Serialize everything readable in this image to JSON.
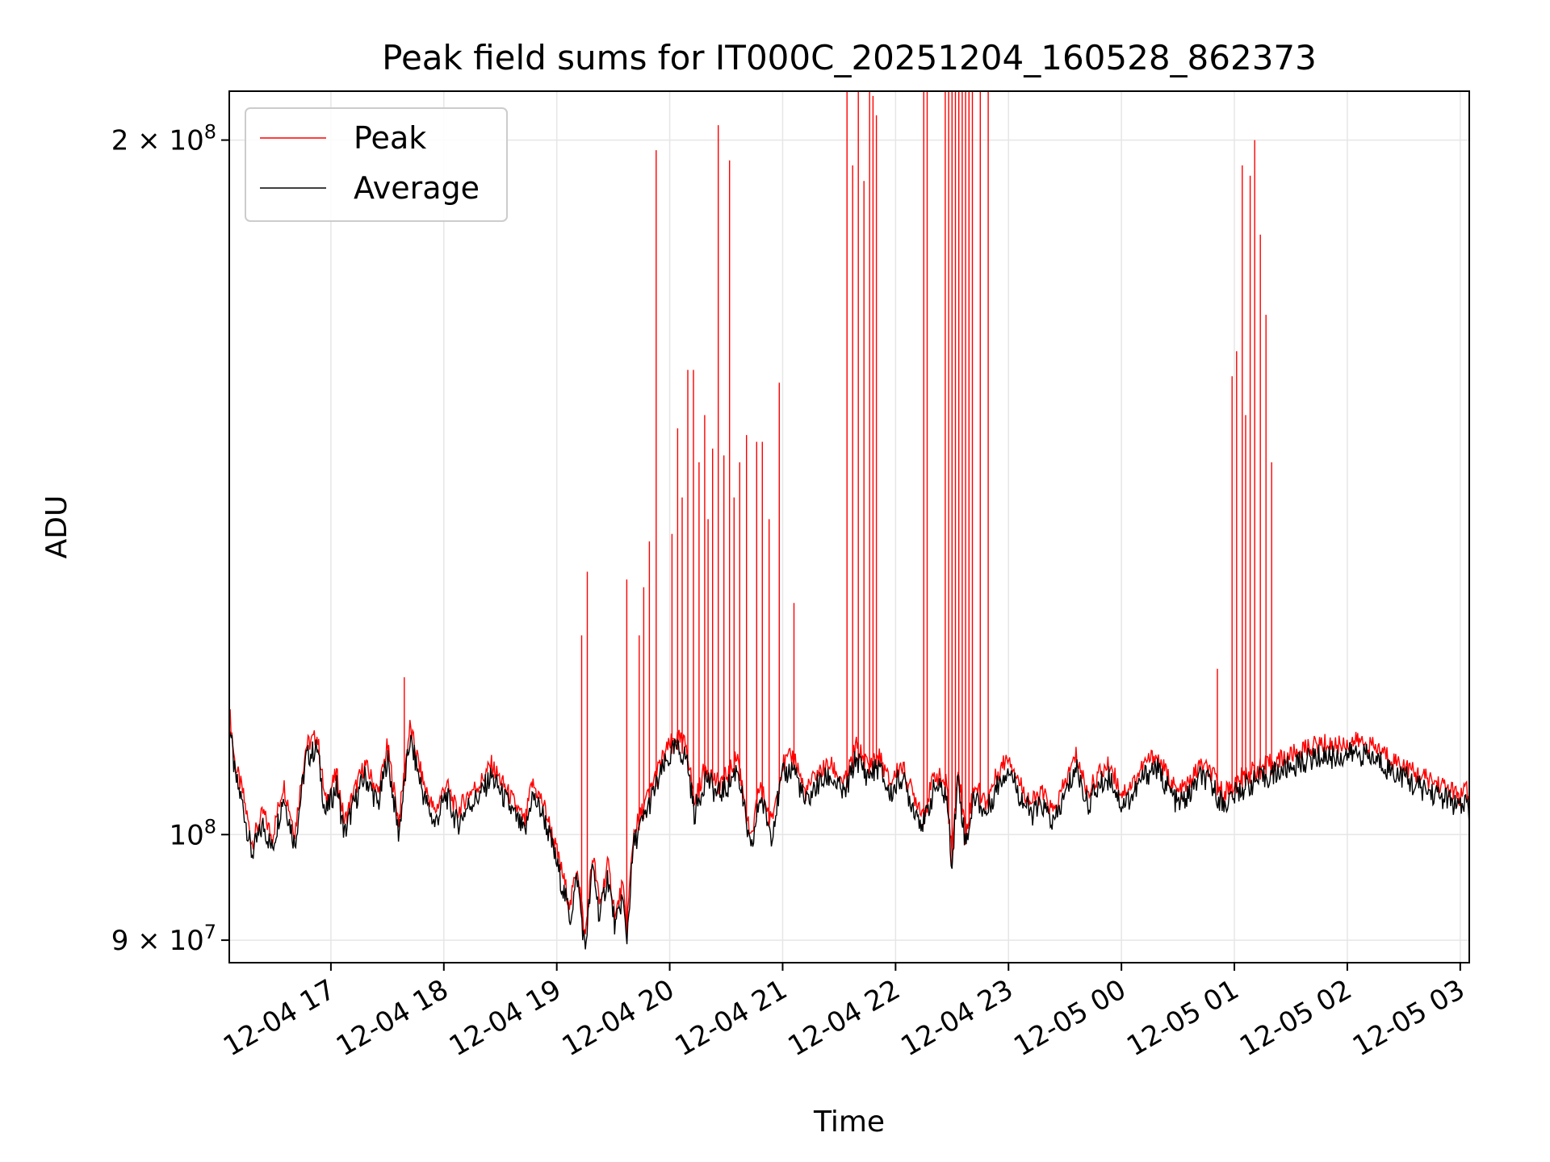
{
  "chart_data": {
    "type": "line",
    "title": "Peak field sums for IT000C_20251204_160528_862373",
    "xlabel": "Time",
    "ylabel": "ADU",
    "yscale": "log",
    "ylim": [
      88000000,
      210000000
    ],
    "xlim_hours": [
      16.1,
      27.08
    ],
    "grid": true,
    "legend_position": "upper-left",
    "x_ticks": [
      {
        "hour": 17,
        "label": "12-04 17"
      },
      {
        "hour": 18,
        "label": "12-04 18"
      },
      {
        "hour": 19,
        "label": "12-04 19"
      },
      {
        "hour": 20,
        "label": "12-04 20"
      },
      {
        "hour": 21,
        "label": "12-04 21"
      },
      {
        "hour": 22,
        "label": "12-04 22"
      },
      {
        "hour": 23,
        "label": "12-04 23"
      },
      {
        "hour": 24,
        "label": "12-05 00"
      },
      {
        "hour": 25,
        "label": "12-05 01"
      },
      {
        "hour": 26,
        "label": "12-05 02"
      },
      {
        "hour": 27,
        "label": "12-05 03"
      }
    ],
    "y_ticks": [
      {
        "value": 90000000,
        "mantissa": "9",
        "exponent": "7"
      },
      {
        "value": 100000000,
        "mantissa": "",
        "exponent": "8"
      },
      {
        "value": 200000000,
        "mantissa": "2",
        "exponent": "8"
      }
    ],
    "series": [
      {
        "name": "Peak",
        "color": "#ff0000",
        "spikes": [
          [
            16.1,
            113000000
          ],
          [
            17.65,
            117000000
          ],
          [
            19.22,
            122000000
          ],
          [
            19.27,
            130000000
          ],
          [
            19.62,
            129000000
          ],
          [
            19.73,
            122000000
          ],
          [
            19.77,
            128000000
          ],
          [
            19.82,
            134000000
          ],
          [
            19.88,
            198000000
          ],
          [
            20.02,
            135000000
          ],
          [
            20.07,
            150000000
          ],
          [
            20.11,
            140000000
          ],
          [
            20.16,
            159000000
          ],
          [
            20.21,
            159000000
          ],
          [
            20.26,
            145000000
          ],
          [
            20.31,
            152000000
          ],
          [
            20.34,
            137000000
          ],
          [
            20.38,
            147000000
          ],
          [
            20.43,
            203000000
          ],
          [
            20.48,
            146000000
          ],
          [
            20.53,
            196000000
          ],
          [
            20.57,
            140000000
          ],
          [
            20.62,
            145000000
          ],
          [
            20.68,
            149000000
          ],
          [
            20.77,
            148000000
          ],
          [
            20.82,
            148000000
          ],
          [
            20.88,
            137000000
          ],
          [
            20.97,
            157000000
          ],
          [
            21.1,
            126000000
          ],
          [
            21.57,
            210000000
          ],
          [
            21.62,
            195000000
          ],
          [
            21.67,
            210000000
          ],
          [
            21.72,
            192000000
          ],
          [
            21.77,
            210000000
          ],
          [
            21.8,
            209000000
          ],
          [
            21.83,
            205000000
          ],
          [
            22.25,
            210000000
          ],
          [
            22.28,
            210000000
          ],
          [
            22.44,
            210000000
          ],
          [
            22.47,
            210000000
          ],
          [
            22.5,
            210000000
          ],
          [
            22.53,
            210000000
          ],
          [
            22.56,
            210000000
          ],
          [
            22.59,
            210000000
          ],
          [
            22.62,
            210000000
          ],
          [
            22.65,
            210000000
          ],
          [
            22.68,
            210000000
          ],
          [
            22.75,
            210000000
          ],
          [
            22.82,
            210000000
          ],
          [
            24.85,
            118000000
          ],
          [
            24.98,
            158000000
          ],
          [
            25.02,
            162000000
          ],
          [
            25.07,
            195000000
          ],
          [
            25.1,
            152000000
          ],
          [
            25.14,
            193000000
          ],
          [
            25.18,
            200000000
          ],
          [
            25.23,
            182000000
          ],
          [
            25.28,
            168000000
          ],
          [
            25.33,
            145000000
          ]
        ]
      },
      {
        "name": "Average",
        "color": "#000000",
        "points": [
          [
            16.1,
            112000000
          ],
          [
            16.15,
            106000000
          ],
          [
            16.22,
            103000000
          ],
          [
            16.3,
            98000000
          ],
          [
            16.4,
            101000000
          ],
          [
            16.48,
            98500000
          ],
          [
            16.58,
            104000000
          ],
          [
            16.68,
            99000000
          ],
          [
            16.78,
            108000000
          ],
          [
            16.88,
            109000000
          ],
          [
            16.95,
            102000000
          ],
          [
            17.05,
            105000000
          ],
          [
            17.12,
            100000000
          ],
          [
            17.2,
            103000000
          ],
          [
            17.3,
            106000000
          ],
          [
            17.42,
            103000000
          ],
          [
            17.5,
            108000000
          ],
          [
            17.6,
            100000000
          ],
          [
            17.7,
            110000000
          ],
          [
            17.82,
            104000000
          ],
          [
            17.92,
            101000000
          ],
          [
            18.02,
            104000000
          ],
          [
            18.12,
            101000000
          ],
          [
            18.22,
            103000000
          ],
          [
            18.32,
            104000000
          ],
          [
            18.42,
            106000000
          ],
          [
            18.52,
            104000000
          ],
          [
            18.62,
            102000000
          ],
          [
            18.72,
            100000000
          ],
          [
            18.78,
            104000000
          ],
          [
            18.88,
            102000000
          ],
          [
            18.98,
            98000000
          ],
          [
            19.05,
            95000000
          ],
          [
            19.12,
            92000000
          ],
          [
            19.18,
            96000000
          ],
          [
            19.25,
            89000000
          ],
          [
            19.32,
            97000000
          ],
          [
            19.38,
            92000000
          ],
          [
            19.45,
            96000000
          ],
          [
            19.52,
            91000000
          ],
          [
            19.58,
            94000000
          ],
          [
            19.62,
            90000000
          ],
          [
            19.68,
            99000000
          ],
          [
            19.75,
            101000000
          ],
          [
            19.85,
            104000000
          ],
          [
            19.95,
            107000000
          ],
          [
            20.05,
            109000000
          ],
          [
            20.15,
            108000000
          ],
          [
            20.22,
            102000000
          ],
          [
            20.32,
            106000000
          ],
          [
            20.42,
            104000000
          ],
          [
            20.52,
            105000000
          ],
          [
            20.6,
            107000000
          ],
          [
            20.68,
            101000000
          ],
          [
            20.72,
            98000000
          ],
          [
            20.8,
            104000000
          ],
          [
            20.9,
            100000000
          ],
          [
            21.0,
            106000000
          ],
          [
            21.1,
            107000000
          ],
          [
            21.2,
            103000000
          ],
          [
            21.3,
            105000000
          ],
          [
            21.42,
            106000000
          ],
          [
            21.55,
            104000000
          ],
          [
            21.65,
            108000000
          ],
          [
            21.75,
            106000000
          ],
          [
            21.85,
            107000000
          ],
          [
            21.95,
            104000000
          ],
          [
            22.05,
            106000000
          ],
          [
            22.15,
            103000000
          ],
          [
            22.25,
            101000000
          ],
          [
            22.35,
            105000000
          ],
          [
            22.45,
            104000000
          ],
          [
            22.5,
            97000000
          ],
          [
            22.55,
            106000000
          ],
          [
            22.62,
            99000000
          ],
          [
            22.7,
            104000000
          ],
          [
            22.8,
            102000000
          ],
          [
            22.9,
            105000000
          ],
          [
            23.0,
            107000000
          ],
          [
            23.1,
            104000000
          ],
          [
            23.2,
            102000000
          ],
          [
            23.3,
            103000000
          ],
          [
            23.4,
            101000000
          ],
          [
            23.5,
            104000000
          ],
          [
            23.6,
            107000000
          ],
          [
            23.7,
            103000000
          ],
          [
            23.8,
            105000000
          ],
          [
            23.9,
            106000000
          ],
          [
            24.0,
            103000000
          ],
          [
            24.1,
            104000000
          ],
          [
            24.2,
            106000000
          ],
          [
            24.3,
            107000000
          ],
          [
            24.4,
            105000000
          ],
          [
            24.5,
            103000000
          ],
          [
            24.6,
            104000000
          ],
          [
            24.7,
            106000000
          ],
          [
            24.8,
            105000000
          ],
          [
            24.9,
            103000000
          ],
          [
            25.0,
            104000000
          ],
          [
            25.1,
            105000000
          ],
          [
            25.2,
            105500000
          ],
          [
            25.3,
            106000000
          ],
          [
            25.4,
            106500000
          ],
          [
            25.5,
            107000000
          ],
          [
            25.6,
            107500000
          ],
          [
            25.7,
            108000000
          ],
          [
            25.8,
            108200000
          ],
          [
            25.9,
            108000000
          ],
          [
            26.0,
            108300000
          ],
          [
            26.1,
            108500000
          ],
          [
            26.2,
            108000000
          ],
          [
            26.3,
            107500000
          ],
          [
            26.4,
            106500000
          ],
          [
            26.5,
            106000000
          ],
          [
            26.6,
            105000000
          ],
          [
            26.7,
            104500000
          ],
          [
            26.8,
            104000000
          ],
          [
            26.9,
            103500000
          ],
          [
            27.0,
            102500000
          ],
          [
            27.05,
            103500000
          ],
          [
            27.08,
            102000000
          ]
        ]
      }
    ]
  }
}
